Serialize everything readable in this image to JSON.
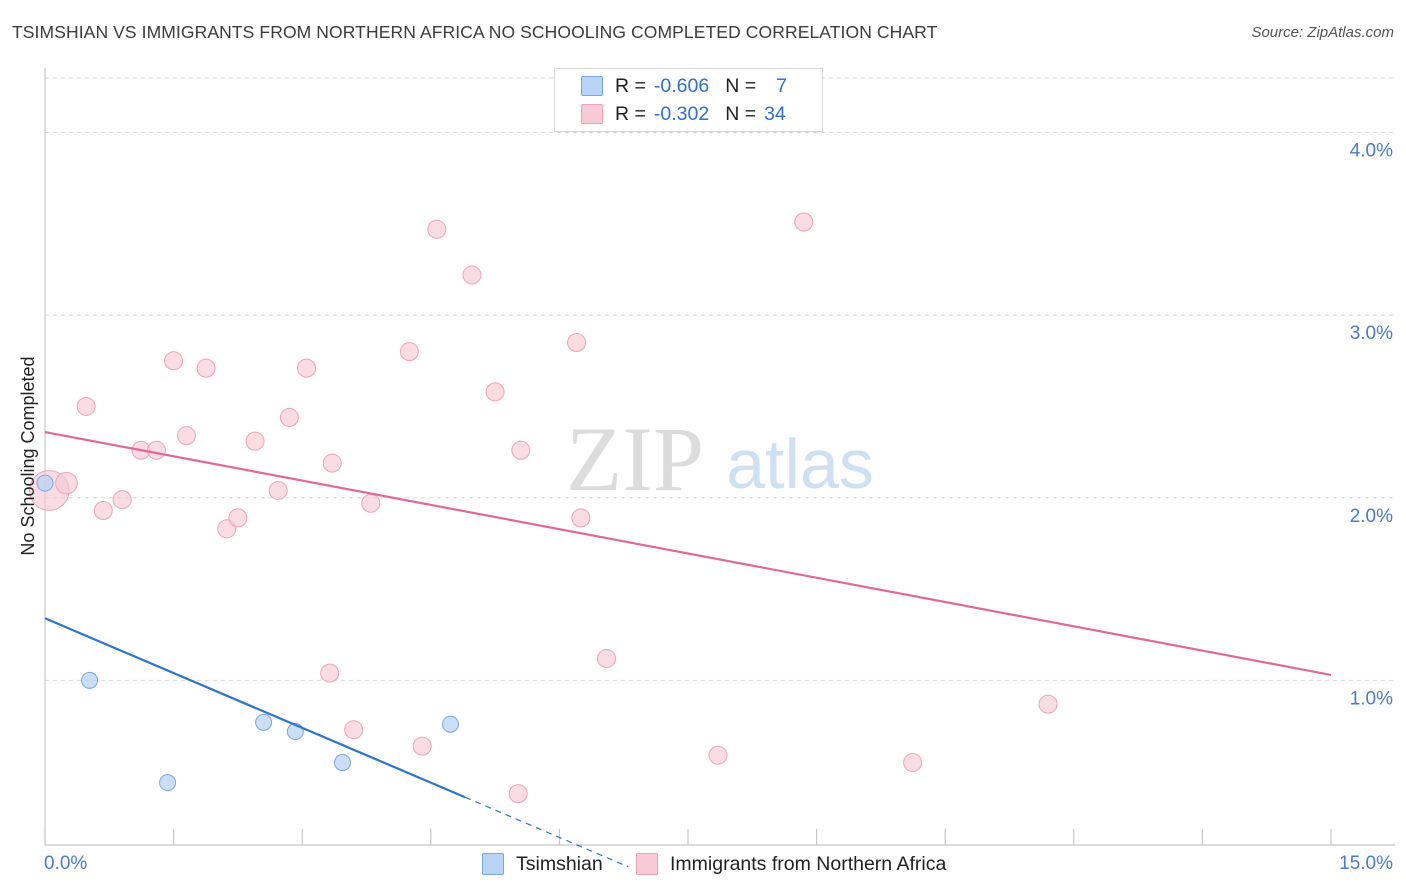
{
  "header": {
    "title": "TSIMSHIAN VS IMMIGRANTS FROM NORTHERN AFRICA NO SCHOOLING COMPLETED CORRELATION CHART",
    "source": "Source: ZipAtlas.com"
  },
  "watermark": {
    "zip": "ZIP",
    "atlas": "atlas"
  },
  "colors": {
    "tsimshian_fill": "#b8d3f5",
    "tsimshian_stroke": "#7aa6e4",
    "tsimshian_line": "#2f74d0",
    "immigrants_fill": "#f8c9d6",
    "immigrants_stroke": "#eea3b8",
    "immigrants_line": "#e06a94",
    "axis_text": "#4a7bd0",
    "grid": "#d8d8d8"
  },
  "legend": {
    "rows": [
      {
        "r_label": "R =",
        "r_value": "-0.606",
        "n_label": "N =",
        "n_value": "7"
      },
      {
        "r_label": "R =",
        "r_value": "-0.302",
        "n_label": "N =",
        "n_value": "34"
      }
    ]
  },
  "bottom_legend": {
    "tsimshian": "Tsimshian",
    "immigrants": "Immigrants from Northern Africa"
  },
  "chart_data": {
    "type": "scatter",
    "title": "TSIMSHIAN VS IMMIGRANTS FROM NORTHERN AFRICA NO SCHOOLING COMPLETED CORRELATION CHART",
    "xlabel": "",
    "ylabel": "No Schooling Completed",
    "xlim": [
      0,
      15
    ],
    "ylim": [
      0,
      4.2
    ],
    "x_tick_labels": [
      "0.0%",
      "15.0%"
    ],
    "y_ticks": [
      1,
      2,
      3,
      4
    ],
    "y_tick_labels": [
      "1.0%",
      "2.0%",
      "3.0%",
      "4.0%"
    ],
    "grid": true,
    "series": [
      {
        "name": "Tsimshian",
        "points": [
          {
            "x": 0.0,
            "y": 2.08,
            "s": 1
          },
          {
            "x": 0.52,
            "y": 1.0,
            "s": 1
          },
          {
            "x": 1.43,
            "y": 0.44,
            "s": 1
          },
          {
            "x": 2.55,
            "y": 0.77,
            "s": 1
          },
          {
            "x": 2.92,
            "y": 0.72,
            "s": 1
          },
          {
            "x": 3.47,
            "y": 0.55,
            "s": 1
          },
          {
            "x": 4.73,
            "y": 0.76,
            "s": 1
          }
        ],
        "trend": {
          "x0": 0.0,
          "y0": 1.34,
          "x1": 4.9,
          "y1": 0.36,
          "dash_to_x": 6.8,
          "dash_to_y": -0.02
        }
      },
      {
        "name": "Immigrants from Northern Africa",
        "points": [
          {
            "x": 0.05,
            "y": 2.04,
            "s": 2.2
          },
          {
            "x": 0.25,
            "y": 2.08,
            "s": 1.2
          },
          {
            "x": 0.48,
            "y": 2.5,
            "s": 1
          },
          {
            "x": 0.68,
            "y": 1.93,
            "s": 1
          },
          {
            "x": 0.9,
            "y": 1.99,
            "s": 1
          },
          {
            "x": 1.12,
            "y": 2.26,
            "s": 1
          },
          {
            "x": 1.3,
            "y": 2.26,
            "s": 1
          },
          {
            "x": 1.5,
            "y": 2.75,
            "s": 1
          },
          {
            "x": 1.65,
            "y": 2.34,
            "s": 1
          },
          {
            "x": 1.88,
            "y": 2.71,
            "s": 1
          },
          {
            "x": 2.12,
            "y": 1.83,
            "s": 1
          },
          {
            "x": 2.25,
            "y": 1.89,
            "s": 1
          },
          {
            "x": 2.45,
            "y": 2.31,
            "s": 1
          },
          {
            "x": 2.72,
            "y": 2.04,
            "s": 1
          },
          {
            "x": 2.85,
            "y": 2.44,
            "s": 1
          },
          {
            "x": 3.05,
            "y": 2.71,
            "s": 1
          },
          {
            "x": 3.32,
            "y": 1.04,
            "s": 1
          },
          {
            "x": 3.35,
            "y": 2.19,
            "s": 1
          },
          {
            "x": 3.6,
            "y": 0.73,
            "s": 1
          },
          {
            "x": 3.8,
            "y": 1.97,
            "s": 1
          },
          {
            "x": 4.25,
            "y": 2.8,
            "s": 1
          },
          {
            "x": 4.4,
            "y": 0.64,
            "s": 1
          },
          {
            "x": 4.57,
            "y": 3.47,
            "s": 1
          },
          {
            "x": 4.98,
            "y": 3.22,
            "s": 1
          },
          {
            "x": 5.25,
            "y": 2.58,
            "s": 1
          },
          {
            "x": 5.52,
            "y": 0.38,
            "s": 1
          },
          {
            "x": 5.55,
            "y": 2.26,
            "s": 1
          },
          {
            "x": 6.25,
            "y": 1.89,
            "s": 1
          },
          {
            "x": 6.2,
            "y": 2.85,
            "s": 1
          },
          {
            "x": 6.55,
            "y": 1.12,
            "s": 1
          },
          {
            "x": 7.85,
            "y": 0.59,
            "s": 1
          },
          {
            "x": 8.85,
            "y": 3.51,
            "s": 1
          },
          {
            "x": 10.12,
            "y": 0.55,
            "s": 1
          },
          {
            "x": 11.7,
            "y": 0.87,
            "s": 1
          }
        ],
        "trend": {
          "x0": 0.0,
          "y0": 2.36,
          "x1": 15.0,
          "y1": 1.03
        }
      }
    ]
  }
}
